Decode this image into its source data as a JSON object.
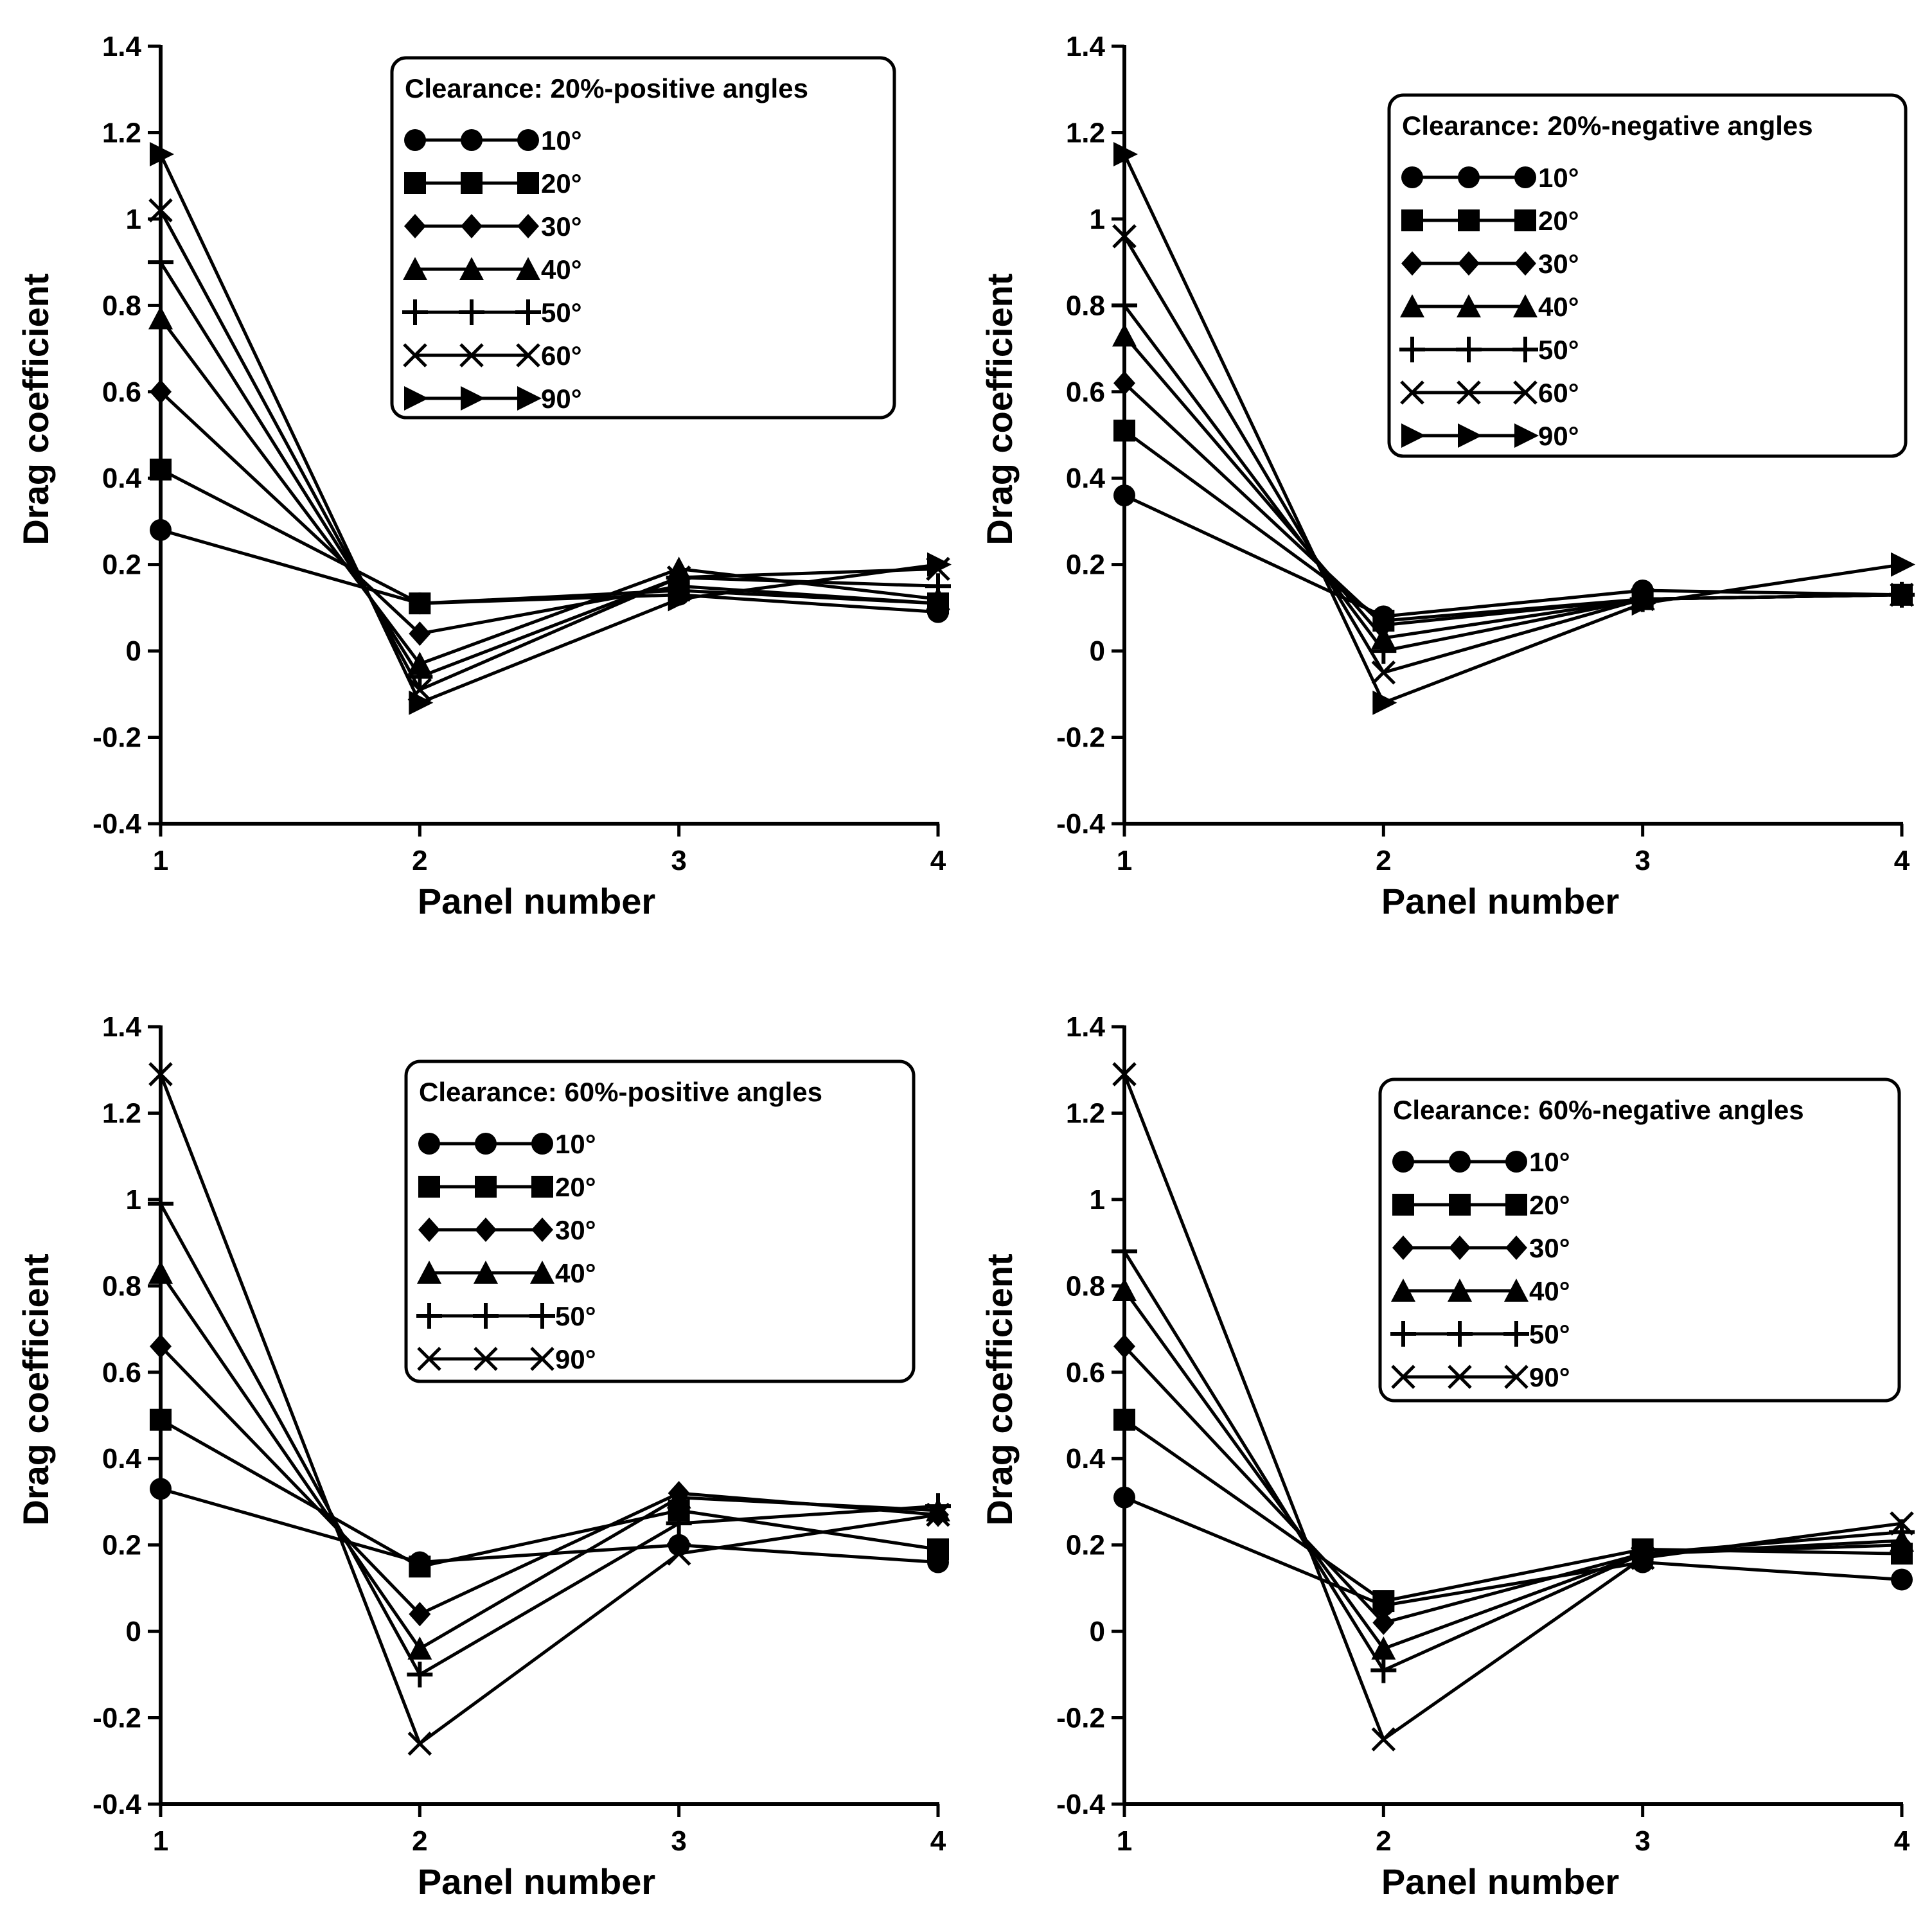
{
  "chart_data": [
    {
      "type": "line",
      "id": "tl",
      "title": "",
      "legend_title": "Clearance: 20%-positive angles",
      "legend_position": "top-right",
      "xlabel": "Panel number",
      "ylabel": "Drag coefficient",
      "x": [
        1,
        2,
        3,
        4
      ],
      "x_tick_labels": [
        "1",
        "2",
        "3",
        "4"
      ],
      "ylim": [
        -0.4,
        1.4
      ],
      "y_ticks": [
        -0.4,
        -0.2,
        0,
        0.2,
        0.4,
        0.6,
        0.8,
        1,
        1.2,
        1.4
      ],
      "y_tick_labels": [
        "-0.4",
        "-0.2",
        "0",
        "0.2",
        "0.4",
        "0.6",
        "0.8",
        "1",
        "1.2",
        "1.4"
      ],
      "series": [
        {
          "name": "10°",
          "marker": "circle",
          "values": [
            0.28,
            0.11,
            0.13,
            0.09
          ]
        },
        {
          "name": "20°",
          "marker": "square",
          "values": [
            0.42,
            0.11,
            0.14,
            0.11
          ]
        },
        {
          "name": "30°",
          "marker": "diamond",
          "values": [
            0.6,
            0.04,
            0.15,
            0.11
          ]
        },
        {
          "name": "40°",
          "marker": "triangle",
          "values": [
            0.77,
            -0.03,
            0.19,
            0.12
          ]
        },
        {
          "name": "50°",
          "marker": "plus",
          "values": [
            0.9,
            -0.06,
            0.17,
            0.15
          ]
        },
        {
          "name": "60°",
          "marker": "x",
          "values": [
            1.02,
            -0.09,
            0.17,
            0.19
          ]
        },
        {
          "name": "90°",
          "marker": "triangle-right",
          "values": [
            1.15,
            -0.12,
            0.12,
            0.2
          ]
        }
      ]
    },
    {
      "type": "line",
      "id": "tr",
      "title": "",
      "legend_title": "Clearance: 20%-negative angles",
      "legend_position": "top-right",
      "xlabel": "Panel number",
      "ylabel": "Drag coefficient",
      "x": [
        1,
        2,
        3,
        4
      ],
      "x_tick_labels": [
        "1",
        "2",
        "3",
        "4"
      ],
      "ylim": [
        -0.4,
        1.4
      ],
      "y_ticks": [
        -0.4,
        -0.2,
        0,
        0.2,
        0.4,
        0.6,
        0.8,
        1,
        1.2,
        1.4
      ],
      "y_tick_labels": [
        "-0.4",
        "-0.2",
        "0",
        "0.2",
        "0.4",
        "0.6",
        "0.8",
        "1",
        "1.2",
        "1.4"
      ],
      "series": [
        {
          "name": "10°",
          "marker": "circle",
          "values": [
            0.36,
            0.08,
            0.14,
            0.13
          ]
        },
        {
          "name": "20°",
          "marker": "square",
          "values": [
            0.51,
            0.07,
            0.12,
            0.13
          ]
        },
        {
          "name": "30°",
          "marker": "diamond",
          "values": [
            0.62,
            0.06,
            0.12,
            0.13
          ]
        },
        {
          "name": "40°",
          "marker": "triangle",
          "values": [
            0.73,
            0.03,
            0.12,
            0.13
          ]
        },
        {
          "name": "50°",
          "marker": "plus",
          "values": [
            0.8,
            0.0,
            0.12,
            0.13
          ]
        },
        {
          "name": "60°",
          "marker": "x",
          "values": [
            0.96,
            -0.05,
            0.12,
            0.13
          ]
        },
        {
          "name": "90°",
          "marker": "triangle-right",
          "values": [
            1.15,
            -0.12,
            0.11,
            0.2
          ]
        }
      ]
    },
    {
      "type": "line",
      "id": "bl",
      "title": "",
      "legend_title": "Clearance: 60%-positive angles",
      "legend_position": "top-right",
      "xlabel": "Panel number",
      "ylabel": "Drag coefficient",
      "x": [
        1,
        2,
        3,
        4
      ],
      "x_tick_labels": [
        "1",
        "2",
        "3",
        "4"
      ],
      "ylim": [
        -0.4,
        1.4
      ],
      "y_ticks": [
        -0.4,
        -0.2,
        0,
        0.2,
        0.4,
        0.6,
        0.8,
        1,
        1.2,
        1.4
      ],
      "y_tick_labels": [
        "-0.4",
        "-0.2",
        "0",
        "0.2",
        "0.4",
        "0.6",
        "0.8",
        "1",
        "1.2",
        "1.4"
      ],
      "series": [
        {
          "name": "10°",
          "marker": "circle",
          "values": [
            0.33,
            0.16,
            0.2,
            0.16
          ]
        },
        {
          "name": "20°",
          "marker": "square",
          "values": [
            0.49,
            0.15,
            0.28,
            0.19
          ]
        },
        {
          "name": "30°",
          "marker": "diamond",
          "values": [
            0.66,
            0.04,
            0.32,
            0.27
          ]
        },
        {
          "name": "40°",
          "marker": "triangle",
          "values": [
            0.83,
            -0.04,
            0.31,
            0.28
          ]
        },
        {
          "name": "50°",
          "marker": "plus",
          "values": [
            0.99,
            -0.1,
            0.25,
            0.29
          ]
        },
        {
          "name": "90°",
          "marker": "x",
          "values": [
            1.29,
            -0.26,
            0.18,
            0.27
          ]
        }
      ]
    },
    {
      "type": "line",
      "id": "br",
      "title": "",
      "legend_title": "Clearance: 60%-negative angles",
      "legend_position": "top-right",
      "xlabel": "Panel number",
      "ylabel": "Drag coefficient",
      "x": [
        1,
        2,
        3,
        4
      ],
      "x_tick_labels": [
        "1",
        "2",
        "3",
        "4"
      ],
      "ylim": [
        -0.4,
        1.4
      ],
      "y_ticks": [
        -0.4,
        -0.2,
        0,
        0.2,
        0.4,
        0.6,
        0.8,
        1,
        1.2,
        1.4
      ],
      "y_tick_labels": [
        "-0.4",
        "-0.2",
        "0",
        "0.2",
        "0.4",
        "0.6",
        "0.8",
        "1",
        "1.2",
        "1.4"
      ],
      "series": [
        {
          "name": "10°",
          "marker": "circle",
          "values": [
            0.31,
            0.06,
            0.16,
            0.12
          ]
        },
        {
          "name": "20°",
          "marker": "square",
          "values": [
            0.49,
            0.07,
            0.19,
            0.18
          ]
        },
        {
          "name": "30°",
          "marker": "diamond",
          "values": [
            0.66,
            0.02,
            0.18,
            0.2
          ]
        },
        {
          "name": "40°",
          "marker": "triangle",
          "values": [
            0.79,
            -0.04,
            0.18,
            0.21
          ]
        },
        {
          "name": "50°",
          "marker": "plus",
          "values": [
            0.88,
            -0.09,
            0.18,
            0.23
          ]
        },
        {
          "name": "90°",
          "marker": "x",
          "values": [
            1.29,
            -0.25,
            0.17,
            0.25
          ]
        }
      ]
    }
  ]
}
